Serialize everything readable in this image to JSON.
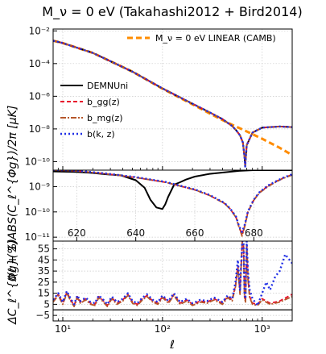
{
  "figure": {
    "title": "M_ν = 0 eV (Takahashi2012 + Bird2014)",
    "xlabel": "ℓ",
    "ylabel_top": "ℓ(ℓ + 1)ABS(C_ℓ^{Φg})/2π [μK]",
    "ylabel_bottom": "ΔC_ℓ^{Φg}(%)"
  },
  "chart_data": [
    {
      "type": "line",
      "panel": "main",
      "xscale": "log",
      "yscale": "log",
      "xlim": [
        8,
        2000
      ],
      "ylim": [
        3e-11,
        0.013
      ],
      "x_ticks": [
        {
          "v": 10,
          "label": "10¹"
        },
        {
          "v": 100,
          "label": "10²"
        },
        {
          "v": 1000,
          "label": "10³"
        }
      ],
      "y_ticks": [
        {
          "v": 0.01,
          "label": "10⁻²"
        },
        {
          "v": 0.0001,
          "label": "10⁻⁴"
        },
        {
          "v": 1e-06,
          "label": "10⁻⁶"
        },
        {
          "v": 1e-08,
          "label": "10⁻⁸"
        },
        {
          "v": 1e-10,
          "label": "10⁻¹⁰"
        }
      ],
      "grid": true,
      "legend_position": "left-center",
      "legend_top_position": "top-right",
      "series": [
        {
          "name": "M_ν = 0 eV LINEAR (CAMB)",
          "color": "#ff8c00",
          "style": "dashed",
          "x": [
            8,
            10,
            20,
            50,
            100,
            200,
            300,
            400,
            500,
            700,
            1000,
            1500,
            2000
          ],
          "y": [
            0.0025,
            0.0018,
            0.00045,
            3.2e-05,
            2.9e-06,
            3.2e-07,
            8.5e-08,
            3.5e-08,
            1.8e-08,
            7e-09,
            2.5e-09,
            7e-10,
            2.5e-10
          ]
        },
        {
          "name": "DEMNUni",
          "color": "#000000",
          "style": "solid",
          "x": [
            8,
            10,
            20,
            50,
            100,
            200,
            300,
            400,
            500,
            550,
            600,
            640,
            665,
            675,
            680,
            700,
            800,
            1000,
            1500,
            2000
          ],
          "y": [
            0.0025,
            0.0018,
            0.00045,
            3.2e-05,
            3e-06,
            3.5e-07,
            1e-07,
            4e-08,
            1.5e-08,
            8e-09,
            4e-09,
            1.5e-09,
            2e-10,
            5e-11,
            1e-10,
            1e-09,
            6e-09,
            1.2e-08,
            1.4e-08,
            1.3e-08
          ]
        },
        {
          "name": "b_gg(z)",
          "color": "#e8112d",
          "style": "dashed",
          "x": [
            8,
            10,
            20,
            50,
            100,
            200,
            300,
            400,
            500,
            550,
            600,
            640,
            665,
            675,
            680,
            700,
            800,
            1000,
            1500,
            2000
          ],
          "y": [
            0.0025,
            0.0018,
            0.00045,
            3.2e-05,
            3e-06,
            3.5e-07,
            1e-07,
            4e-08,
            1.5e-08,
            8e-09,
            4e-09,
            1.5e-09,
            2e-10,
            5e-11,
            1e-10,
            1e-09,
            6e-09,
            1.2e-08,
            1.4e-08,
            1.3e-08
          ]
        },
        {
          "name": "b_mg(z)",
          "color": "#b5562a",
          "style": "dashdot",
          "x": [
            8,
            10,
            20,
            50,
            100,
            200,
            300,
            400,
            500,
            550,
            600,
            640,
            665,
            675,
            680,
            700,
            800,
            1000,
            1500,
            2000
          ],
          "y": [
            0.0025,
            0.0018,
            0.00045,
            3.2e-05,
            3e-06,
            3.5e-07,
            1e-07,
            4e-08,
            1.5e-08,
            8e-09,
            4e-09,
            1.5e-09,
            2e-10,
            5e-11,
            1e-10,
            1e-09,
            6e-09,
            1.2e-08,
            1.4e-08,
            1.3e-08
          ]
        },
        {
          "name": "b(k, z)",
          "color": "#1f2ee6",
          "style": "dotted",
          "x": [
            8,
            10,
            20,
            50,
            100,
            200,
            300,
            400,
            500,
            550,
            600,
            640,
            665,
            675,
            680,
            700,
            800,
            1000,
            1500,
            2000
          ],
          "y": [
            0.0025,
            0.0018,
            0.00045,
            3.2e-05,
            3e-06,
            3.5e-07,
            1e-07,
            4e-08,
            1.5e-08,
            8e-09,
            4e-09,
            1.5e-09,
            2e-10,
            5e-11,
            1e-10,
            1e-09,
            6e-09,
            1.2e-08,
            1.4e-08,
            1.3e-08
          ]
        }
      ]
    },
    {
      "type": "line",
      "panel": "zoom",
      "xscale": "linear",
      "yscale": "log",
      "xlim": [
        612,
        693
      ],
      "ylim": [
        7e-12,
        4.5e-09
      ],
      "x_ticks": [
        {
          "v": 620,
          "label": "620"
        },
        {
          "v": 640,
          "label": "640"
        },
        {
          "v": 660,
          "label": "660"
        },
        {
          "v": 680,
          "label": "680"
        }
      ],
      "y_ticks": [
        {
          "v": 1e-09,
          "label": "10⁻⁹"
        },
        {
          "v": 1e-10,
          "label": "10⁻¹⁰"
        },
        {
          "v": 1e-11,
          "label": "10⁻¹¹"
        }
      ],
      "grid": true,
      "series": [
        {
          "name": "DEMNUni",
          "color": "#000000",
          "style": "solid",
          "x": [
            612,
            620,
            625,
            630,
            635,
            640,
            643,
            645,
            647,
            649,
            650,
            651,
            653,
            655,
            657,
            660,
            665,
            670,
            675,
            680,
            685,
            690,
            693
          ],
          "y": [
            4e-09,
            3.8e-09,
            3.5e-09,
            3.1e-09,
            2.8e-09,
            1.8e-09,
            9e-10,
            3e-10,
            1.5e-10,
            1.3e-10,
            2e-10,
            4e-10,
            1.2e-09,
            1.5e-09,
            1.9e-09,
            2.5e-09,
            3.2e-09,
            3.7e-09,
            4.2e-09,
            4.5e-09,
            4.5e-09,
            4.5e-09,
            4.5e-09
          ]
        },
        {
          "name": "b_gg(z)",
          "color": "#e8112d",
          "style": "dashed",
          "x": [
            612,
            620,
            630,
            640,
            650,
            660,
            665,
            670,
            672,
            674,
            675,
            676,
            677,
            678,
            680,
            682,
            685,
            688,
            690,
            693
          ],
          "y": [
            4.5e-09,
            4.2e-09,
            3.2e-09,
            2.3e-09,
            1.5e-09,
            7.5e-10,
            4.5e-10,
            2.2e-10,
            1.3e-10,
            6e-11,
            2.5e-11,
            1.3e-11,
            3e-11,
            1e-10,
            3e-10,
            6e-10,
            1.1e-09,
            1.7e-09,
            2.2e-09,
            3e-09
          ]
        },
        {
          "name": "b_mg(z)",
          "color": "#b5562a",
          "style": "dashdot",
          "x": [
            612,
            620,
            630,
            640,
            650,
            660,
            665,
            670,
            672,
            674,
            675,
            676,
            677,
            678,
            680,
            682,
            685,
            688,
            690,
            693
          ],
          "y": [
            4.5e-09,
            4.2e-09,
            3.2e-09,
            2.3e-09,
            1.5e-09,
            7.5e-10,
            4.5e-10,
            2.2e-10,
            1.3e-10,
            6e-11,
            2.5e-11,
            1.1e-11,
            2.8e-11,
            9.5e-11,
            2.9e-10,
            5.8e-10,
            1.05e-09,
            1.65e-09,
            2.15e-09,
            2.9e-09
          ]
        },
        {
          "name": "b(k, z)",
          "color": "#1f2ee6",
          "style": "dotted",
          "x": [
            612,
            620,
            630,
            640,
            650,
            660,
            665,
            670,
            672,
            674,
            675,
            676,
            677,
            678,
            680,
            682,
            685,
            688,
            690,
            693
          ],
          "y": [
            4.6e-09,
            4.3e-09,
            3.3e-09,
            2.4e-09,
            1.55e-09,
            7.8e-10,
            4.7e-10,
            2.3e-10,
            1.35e-10,
            6.5e-11,
            2.7e-11,
            1.6e-11,
            3.3e-11,
            1.05e-10,
            3.1e-10,
            6.2e-10,
            1.15e-09,
            1.75e-09,
            2.25e-09,
            3.1e-09
          ]
        }
      ]
    },
    {
      "type": "line",
      "panel": "ratio",
      "xscale": "log",
      "yscale": "linear",
      "xlim": [
        8,
        2000
      ],
      "ylim": [
        -10,
        62
      ],
      "x_ticks": [
        {
          "v": 10,
          "label": "10¹"
        },
        {
          "v": 100,
          "label": "10²"
        },
        {
          "v": 1000,
          "label": "10³"
        }
      ],
      "y_ticks": [
        {
          "v": 55,
          "label": "55"
        },
        {
          "v": 45,
          "label": "45"
        },
        {
          "v": 35,
          "label": "35"
        },
        {
          "v": 25,
          "label": "25"
        },
        {
          "v": 15,
          "label": "15"
        },
        {
          "v": 5,
          "label": "5"
        },
        {
          "v": -5,
          "label": "−5"
        }
      ],
      "grid": true,
      "series": [
        {
          "name": "b_gg(z)",
          "color": "#e8112d",
          "style": "dashed",
          "x": [
            8,
            9,
            10,
            11,
            12,
            13,
            14,
            15,
            17,
            19,
            21,
            23,
            25,
            28,
            31,
            35,
            40,
            45,
            50,
            56,
            63,
            70,
            80,
            90,
            100,
            115,
            130,
            150,
            175,
            200,
            240,
            280,
            330,
            400,
            450,
            500,
            540,
            570,
            600,
            630,
            650,
            665,
            680,
            700,
            720,
            750,
            800,
            900,
            1000,
            1200,
            1500,
            2000
          ],
          "y": [
            8,
            14,
            6,
            16,
            9,
            4,
            12,
            7,
            10,
            6,
            5,
            12,
            9,
            4,
            11,
            6,
            9,
            14,
            7,
            5,
            10,
            13,
            8,
            6,
            12,
            7,
            14,
            6,
            9,
            5,
            8,
            7,
            10,
            6,
            12,
            9,
            22,
            40,
            15,
            62,
            60,
            12,
            8,
            60,
            30,
            12,
            6,
            5,
            10,
            6,
            8,
            14
          ]
        },
        {
          "name": "b_mg(z)",
          "color": "#b5562a",
          "style": "dashdot",
          "x": [
            8,
            9,
            10,
            11,
            12,
            13,
            14,
            15,
            17,
            19,
            21,
            23,
            25,
            28,
            31,
            35,
            40,
            45,
            50,
            56,
            63,
            70,
            80,
            90,
            100,
            115,
            130,
            150,
            175,
            200,
            240,
            280,
            330,
            400,
            450,
            500,
            540,
            570,
            600,
            630,
            650,
            665,
            680,
            700,
            720,
            750,
            800,
            900,
            1000,
            1200,
            1500,
            2000
          ],
          "y": [
            7,
            13,
            5,
            15,
            8,
            3,
            11,
            6,
            9,
            5,
            4,
            11,
            8,
            3,
            10,
            5,
            8,
            13,
            6,
            4,
            9,
            12,
            7,
            5,
            11,
            6,
            13,
            5,
            8,
            4,
            7,
            6,
            9,
            5,
            11,
            8,
            21,
            38,
            14,
            61,
            59,
            11,
            7,
            59,
            28,
            11,
            5,
            4,
            9,
            5,
            7,
            12
          ]
        },
        {
          "name": "b(k, z)",
          "color": "#1f2ee6",
          "style": "dotted",
          "x": [
            8,
            9,
            10,
            11,
            12,
            13,
            14,
            15,
            17,
            19,
            21,
            23,
            25,
            28,
            31,
            35,
            40,
            45,
            50,
            56,
            63,
            70,
            80,
            90,
            100,
            115,
            130,
            150,
            175,
            200,
            240,
            280,
            330,
            400,
            450,
            500,
            540,
            570,
            600,
            630,
            650,
            665,
            680,
            700,
            720,
            750,
            800,
            900,
            1000,
            1100,
            1200,
            1350,
            1500,
            1700,
            2000
          ],
          "y": [
            9,
            15,
            7,
            17,
            10,
            5,
            13,
            8,
            11,
            7,
            6,
            13,
            10,
            5,
            12,
            7,
            10,
            15,
            8,
            6,
            11,
            14,
            9,
            7,
            13,
            8,
            15,
            7,
            10,
            6,
            9,
            8,
            11,
            7,
            13,
            10,
            25,
            45,
            18,
            62,
            62,
            15,
            10,
            62,
            35,
            18,
            10,
            4,
            15,
            25,
            18,
            30,
            35,
            50,
            42
          ]
        }
      ]
    }
  ]
}
